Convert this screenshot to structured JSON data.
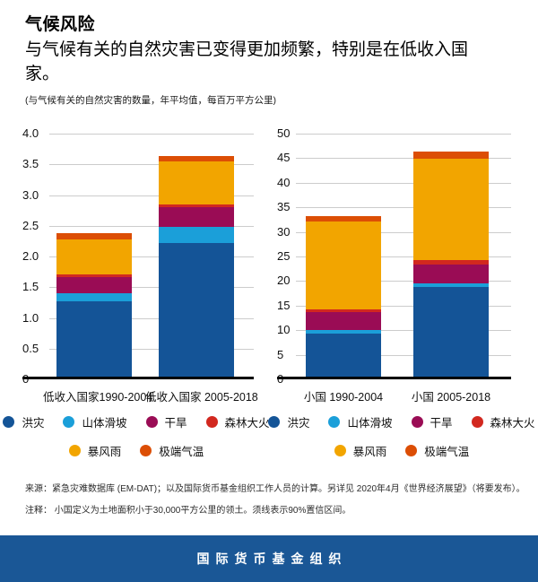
{
  "header": {
    "title": "气候风险",
    "subtitle": "与气候有关的自然灾害已变得更加频繁，特别是在低收入国家。",
    "unit_note": "(与气候有关的自然灾害的数量，年平均值，每百万平方公里)"
  },
  "palette": {
    "flood": "#145497",
    "landslide": "#1b9fd9",
    "drought": "#9a0c55",
    "forest_fire": "#d2281f",
    "storm": "#f2a500",
    "extreme_temp": "#dc4e05",
    "gridline": "#cccccc",
    "axis": "#000000",
    "banner_blue": "#1a5796"
  },
  "chart_data": [
    {
      "type": "bar",
      "stacked": true,
      "grid": true,
      "legend_position": "bottom",
      "ylim": [
        0,
        4.0
      ],
      "ystep": 0.5,
      "tick_decimals": 1,
      "tick_left": -30,
      "categories": [
        "低收入国家1990-2004",
        "低收入国家 2005-2018"
      ],
      "series": [
        {
          "name": "洪灾",
          "color": "#145497",
          "values": [
            1.22,
            2.17
          ]
        },
        {
          "name": "山体滑坡",
          "color": "#1b9fd9",
          "values": [
            0.14,
            0.27
          ]
        },
        {
          "name": "干旱",
          "color": "#9a0c55",
          "values": [
            0.26,
            0.32
          ]
        },
        {
          "name": "森林大火",
          "color": "#d2281f",
          "values": [
            0.05,
            0.04
          ]
        },
        {
          "name": "暴风雨",
          "color": "#f2a500",
          "values": [
            0.56,
            0.7
          ]
        },
        {
          "name": "极端气温",
          "color": "#dc4e05",
          "values": [
            0.1,
            0.1
          ]
        }
      ]
    },
    {
      "type": "bar",
      "stacked": true,
      "grid": true,
      "legend_position": "bottom",
      "ylim": [
        0,
        50
      ],
      "ystep": 5,
      "tick_decimals": 0,
      "tick_left": -21,
      "categories": [
        "小国 1990-2004",
        "小国 2005-2018"
      ],
      "series": [
        {
          "name": "洪灾",
          "color": "#145497",
          "values": [
            8.7,
            18.2
          ]
        },
        {
          "name": "山体滑坡",
          "color": "#1b9fd9",
          "values": [
            0.8,
            0.8
          ]
        },
        {
          "name": "干旱",
          "color": "#9a0c55",
          "values": [
            3.7,
            3.9
          ]
        },
        {
          "name": "森林大火",
          "color": "#d2281f",
          "values": [
            0.5,
            0.9
          ]
        },
        {
          "name": "暴风雨",
          "color": "#f2a500",
          "values": [
            17.9,
            20.5
          ]
        },
        {
          "name": "极端气温",
          "color": "#dc4e05",
          "values": [
            1.0,
            1.5
          ]
        }
      ]
    }
  ],
  "footer": {
    "source": "来源：紧急灾难数据库 (EM-DAT)；以及国际货币基金组织工作人员的计算。另详见 2020年4月《世界经济展望》（将要发布）。",
    "note": "注释： 小国定义为土地面积小于30,000平方公里的领土。须线表示90%置信区间。"
  },
  "banner": {
    "label": "国际货币基金组织",
    "background": "#1a5796"
  }
}
